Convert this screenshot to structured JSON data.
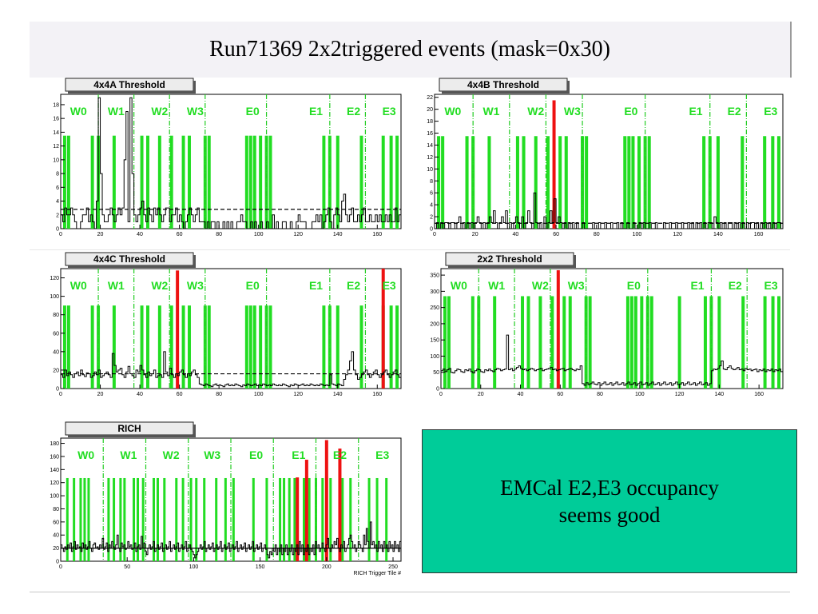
{
  "page": {
    "title": "Run71369 2x2triggered events (mask=0x30)"
  },
  "note": {
    "line1": "EMCal E2,E3 occupancy",
    "line2": "seems good"
  },
  "colors": {
    "good_strip": "#22dd22",
    "hot_strip": "#ee1111",
    "region_line": "#22cc22",
    "trace": "#000000",
    "tab_bg": "#ececec"
  },
  "chart_data": [
    {
      "id": "p4a",
      "type": "histogram",
      "title": "4x4A Threshold",
      "xlabel": "",
      "xlim": [
        0,
        172
      ],
      "ylim": [
        0,
        19.5
      ],
      "xticks": [
        0,
        20,
        40,
        60,
        80,
        100,
        120,
        140,
        160
      ],
      "yticks": [
        0,
        2,
        4,
        6,
        8,
        10,
        12,
        14,
        16,
        18
      ],
      "region_labels": [
        {
          "text": "W0",
          "x": 9
        },
        {
          "text": "W1",
          "x": 28
        },
        {
          "text": "W2",
          "x": 50
        },
        {
          "text": "W3",
          "x": 68
        },
        {
          "text": "E0",
          "x": 97
        },
        {
          "text": "E1",
          "x": 129
        },
        {
          "text": "E2",
          "x": 148
        },
        {
          "text": "E3",
          "x": 166
        }
      ],
      "dividers": [
        19,
        37,
        55,
        73,
        104,
        136,
        154
      ],
      "green_strips": [
        2,
        4,
        16,
        19,
        27,
        41,
        44,
        50,
        56,
        62,
        65,
        73,
        75,
        94,
        96,
        98,
        101,
        104,
        106,
        133,
        136,
        140,
        152,
        163,
        167,
        170
      ],
      "green_height": 13.5,
      "red_strips": [],
      "threshold": 2.8,
      "values": [
        2,
        1,
        3,
        2,
        2,
        3,
        2,
        1,
        0,
        0,
        1,
        2,
        2,
        3,
        1,
        2,
        1,
        0,
        4,
        19,
        8,
        2,
        1,
        1,
        2,
        3,
        2,
        1,
        2,
        3,
        2,
        3,
        10,
        17,
        1,
        19,
        8,
        2,
        1,
        2,
        3,
        4,
        2,
        1,
        3,
        2,
        1,
        3,
        2,
        3,
        2,
        1,
        2,
        3,
        3,
        1,
        2,
        2,
        3,
        1,
        2,
        1,
        0,
        1,
        2,
        3,
        2,
        1,
        2,
        3,
        1,
        1,
        1,
        0,
        1,
        0,
        1,
        1,
        0,
        1,
        0,
        0,
        1,
        0,
        1,
        0,
        1,
        0,
        0,
        1,
        1,
        2,
        1,
        1,
        0,
        0,
        1,
        0,
        1,
        0,
        0,
        1,
        0,
        0,
        1,
        0,
        0,
        2,
        0,
        1,
        0,
        0,
        1,
        1,
        0,
        0,
        1,
        0,
        0,
        1,
        2,
        1,
        1,
        1,
        0,
        0,
        0,
        1,
        1,
        2,
        1,
        2,
        0,
        1,
        2,
        3,
        1,
        0,
        2,
        3,
        2,
        1,
        4,
        5,
        2,
        1,
        2,
        3,
        1,
        1,
        2,
        1,
        2,
        3,
        1,
        1,
        2,
        1,
        1,
        2,
        1,
        2,
        1,
        1,
        2,
        1,
        2,
        1,
        1,
        3,
        1,
        2
      ]
    },
    {
      "id": "p4b",
      "type": "histogram",
      "title": "4x4B Threshold",
      "xlabel": "",
      "xlim": [
        0,
        172
      ],
      "ylim": [
        0,
        22.5
      ],
      "xticks": [
        0,
        20,
        40,
        60,
        80,
        100,
        120,
        140,
        160
      ],
      "yticks": [
        0,
        2,
        4,
        6,
        8,
        10,
        12,
        14,
        16,
        18,
        20,
        22
      ],
      "region_labels": [
        {
          "text": "W0",
          "x": 9
        },
        {
          "text": "W1",
          "x": 28
        },
        {
          "text": "W2",
          "x": 50
        },
        {
          "text": "W3",
          "x": 68
        },
        {
          "text": "E0",
          "x": 97
        },
        {
          "text": "E1",
          "x": 129
        },
        {
          "text": "E2",
          "x": 148
        },
        {
          "text": "E3",
          "x": 166
        }
      ],
      "dividers": [
        19,
        37,
        55,
        73,
        104,
        136,
        154
      ],
      "green_strips": [
        2,
        4,
        16,
        19,
        27,
        41,
        44,
        50,
        56,
        62,
        65,
        73,
        75,
        94,
        96,
        98,
        101,
        104,
        106,
        133,
        136,
        140,
        152,
        163,
        167,
        170
      ],
      "green_height": 15.5,
      "red_strips": [
        {
          "x": 59,
          "height": 21.5
        }
      ],
      "threshold": 0.9,
      "values": [
        0,
        1,
        0,
        1,
        0,
        1,
        1,
        0,
        1,
        1,
        0,
        1,
        2,
        0,
        1,
        0,
        1,
        0,
        1,
        0,
        1,
        2,
        1,
        0,
        1,
        0,
        1,
        2,
        1,
        3,
        1,
        0,
        1,
        2,
        1,
        3,
        0,
        1,
        0,
        1,
        2,
        1,
        0,
        2,
        0,
        1,
        3,
        1,
        0,
        6,
        1,
        0,
        1,
        0,
        2,
        0,
        1,
        3,
        1,
        5,
        1,
        2,
        1,
        0,
        1,
        0,
        1,
        0,
        1,
        0,
        1,
        0,
        0,
        1,
        0,
        0,
        0,
        0,
        1,
        0,
        0,
        1,
        0,
        0,
        1,
        0,
        0,
        1,
        0,
        0,
        1,
        0,
        1,
        0,
        0,
        1,
        0,
        0,
        1,
        0,
        0,
        1,
        0,
        1,
        0,
        0,
        1,
        0,
        0,
        1,
        0,
        0,
        0,
        1,
        0,
        0,
        1,
        0,
        0,
        1,
        0,
        0,
        1,
        0,
        0,
        1,
        0,
        1,
        0,
        1,
        0,
        1,
        0,
        1,
        0,
        1,
        1,
        0,
        2,
        1,
        0,
        1,
        0,
        1,
        0,
        1,
        1,
        0,
        1,
        0,
        1,
        0,
        1,
        0,
        1,
        0,
        1,
        1,
        0,
        1,
        0,
        1,
        0,
        1,
        0,
        1,
        0,
        1,
        0,
        1,
        1,
        0
      ]
    },
    {
      "id": "p4c",
      "type": "histogram",
      "title": "4x4C Threshold",
      "xlabel": "",
      "xlim": [
        0,
        172
      ],
      "ylim": [
        0,
        130
      ],
      "xticks": [
        0,
        20,
        40,
        60,
        80,
        100,
        120,
        140,
        160
      ],
      "yticks": [
        0,
        20,
        40,
        60,
        80,
        100,
        120
      ],
      "region_labels": [
        {
          "text": "W0",
          "x": 9
        },
        {
          "text": "W1",
          "x": 28
        },
        {
          "text": "W2",
          "x": 50
        },
        {
          "text": "W3",
          "x": 68
        },
        {
          "text": "E0",
          "x": 97
        },
        {
          "text": "E1",
          "x": 129
        },
        {
          "text": "E2",
          "x": 148
        },
        {
          "text": "E3",
          "x": 166
        }
      ],
      "dividers": [
        19,
        37,
        55,
        73,
        104,
        136,
        154
      ],
      "green_strips": [
        2,
        4,
        16,
        19,
        27,
        41,
        44,
        50,
        56,
        62,
        65,
        73,
        75,
        94,
        96,
        98,
        101,
        104,
        106,
        133,
        136,
        140,
        152,
        163,
        167,
        170
      ],
      "green_height": 90,
      "red_strips": [
        {
          "x": 59,
          "height": 128
        },
        {
          "x": 163,
          "height": 132
        }
      ],
      "threshold": 16,
      "values": [
        15,
        12,
        20,
        14,
        18,
        15,
        12,
        16,
        18,
        14,
        20,
        15,
        13,
        17,
        16,
        12,
        14,
        18,
        15,
        20,
        12,
        14,
        16,
        18,
        15,
        12,
        38,
        25,
        18,
        20,
        22,
        15,
        12,
        18,
        24,
        16,
        14,
        12,
        20,
        18,
        25,
        20,
        15,
        12,
        18,
        14,
        16,
        20,
        12,
        14,
        15,
        12,
        40,
        18,
        14,
        22,
        15,
        12,
        16,
        14,
        18,
        20,
        15,
        12,
        16,
        14,
        18,
        20,
        15,
        12,
        5,
        4,
        3,
        5,
        4,
        3,
        2,
        4,
        5,
        3,
        4,
        3,
        2,
        4,
        5,
        3,
        4,
        3,
        5,
        4,
        3,
        2,
        4,
        3,
        5,
        4,
        3,
        4,
        5,
        3,
        4,
        3,
        5,
        4,
        3,
        4,
        3,
        5,
        4,
        3,
        4,
        3,
        5,
        4,
        3,
        2,
        4,
        3,
        5,
        4,
        3,
        4,
        5,
        3,
        4,
        3,
        5,
        4,
        3,
        4,
        3,
        5,
        4,
        3,
        4,
        3,
        15,
        5,
        4,
        3,
        5,
        4,
        3,
        10,
        15,
        20,
        30,
        40,
        20,
        15,
        10,
        12,
        15,
        18,
        20,
        15,
        12,
        15,
        18,
        20,
        15,
        12,
        15,
        18,
        20,
        15,
        12,
        15,
        18,
        20,
        15,
        12
      ]
    },
    {
      "id": "p2x2",
      "type": "histogram",
      "title": "2x2 Threshold",
      "xlabel": "",
      "xlim": [
        0,
        172
      ],
      "ylim": [
        0,
        370
      ],
      "xticks": [
        0,
        20,
        40,
        60,
        80,
        100,
        120,
        140,
        160
      ],
      "yticks": [
        0,
        50,
        100,
        150,
        200,
        250,
        300,
        350
      ],
      "region_labels": [
        {
          "text": "W0",
          "x": 9
        },
        {
          "text": "W1",
          "x": 28
        },
        {
          "text": "W2",
          "x": 50
        },
        {
          "text": "W3",
          "x": 68
        },
        {
          "text": "E0",
          "x": 97
        },
        {
          "text": "E1",
          "x": 129
        },
        {
          "text": "E2",
          "x": 148
        },
        {
          "text": "E3",
          "x": 166
        }
      ],
      "dividers": [
        19,
        37,
        55,
        73,
        104,
        136,
        154
      ],
      "green_strips": [
        2,
        4,
        16,
        19,
        27,
        41,
        44,
        50,
        56,
        62,
        65,
        73,
        75,
        94,
        96,
        98,
        101,
        104,
        106,
        120,
        133,
        136,
        140,
        152,
        163,
        167,
        170
      ],
      "green_height": 285,
      "red_strips": [
        {
          "x": 59,
          "height": 365
        }
      ],
      "threshold": null,
      "values": [
        55,
        60,
        52,
        58,
        62,
        50,
        48,
        55,
        60,
        58,
        52,
        50,
        58,
        55,
        60,
        52,
        48,
        55,
        60,
        58,
        52,
        50,
        58,
        55,
        60,
        55,
        52,
        58,
        62,
        60,
        55,
        58,
        60,
        165,
        58,
        62,
        55,
        60,
        65,
        70,
        62,
        58,
        60,
        55,
        58,
        62,
        60,
        55,
        58,
        60,
        62,
        55,
        58,
        60,
        62,
        65,
        58,
        60,
        55,
        58,
        60,
        62,
        55,
        58,
        60,
        62,
        58,
        55,
        60,
        58,
        70,
        15,
        10,
        18,
        12,
        15,
        20,
        14,
        12,
        18,
        10,
        15,
        20,
        12,
        14,
        18,
        10,
        15,
        20,
        12,
        14,
        18,
        10,
        15,
        20,
        12,
        14,
        18,
        10,
        15,
        20,
        12,
        14,
        18,
        10,
        15,
        20,
        12,
        14,
        18,
        10,
        15,
        20,
        12,
        14,
        18,
        10,
        15,
        20,
        12,
        14,
        18,
        10,
        15,
        20,
        12,
        14,
        18,
        10,
        15,
        20,
        12,
        14,
        18,
        10,
        15,
        55,
        60,
        58,
        62,
        70,
        85,
        60,
        58,
        65,
        70,
        62,
        58,
        60,
        65,
        58,
        60,
        55,
        62,
        58,
        60,
        55,
        58,
        60,
        52,
        58,
        55,
        60,
        52,
        58,
        55,
        60,
        52,
        58,
        55,
        60,
        52
      ]
    },
    {
      "id": "prich",
      "type": "histogram",
      "title": "RICH",
      "xlabel": "RICH Trigger Tile #",
      "xlim": [
        0,
        256
      ],
      "ylim": [
        0,
        188
      ],
      "xticks": [
        0,
        50,
        100,
        150,
        200,
        250
      ],
      "yticks": [
        0,
        20,
        40,
        60,
        80,
        100,
        120,
        140,
        160,
        180
      ],
      "region_labels": [
        {
          "text": "W0",
          "x": 19
        },
        {
          "text": "W1",
          "x": 51
        },
        {
          "text": "W2",
          "x": 83
        },
        {
          "text": "W3",
          "x": 114
        },
        {
          "text": "E0",
          "x": 147
        },
        {
          "text": "E1",
          "x": 179
        },
        {
          "text": "E2",
          "x": 210
        },
        {
          "text": "E3",
          "x": 242
        }
      ],
      "dividers": [
        32,
        64,
        96,
        128,
        160,
        192,
        224
      ],
      "green_strips": [
        5,
        10,
        15,
        18,
        21,
        36,
        40,
        45,
        48,
        55,
        58,
        62,
        70,
        73,
        78,
        87,
        92,
        98,
        102,
        108,
        117,
        124,
        130,
        145,
        155,
        165,
        168,
        172,
        176,
        183,
        187,
        192,
        197,
        203,
        212,
        218,
        232,
        238,
        245
      ],
      "green_height": 127,
      "red_strips": [
        {
          "x": 178,
          "height": 128
        },
        {
          "x": 185,
          "height": 155
        },
        {
          "x": 200,
          "height": 185
        },
        {
          "x": 210,
          "height": 172
        }
      ],
      "threshold": 20,
      "values": [
        25,
        20,
        15,
        22,
        18,
        25,
        20,
        28,
        15,
        22,
        30,
        18,
        25,
        20,
        22,
        15,
        28,
        20,
        25,
        18,
        22,
        30,
        20,
        15,
        25,
        28,
        20,
        22,
        18,
        25,
        20,
        35,
        18,
        22,
        28,
        15,
        25,
        20,
        30,
        22,
        18,
        25,
        40,
        20,
        15,
        28,
        22,
        25,
        18,
        20,
        30,
        22,
        25,
        18,
        20,
        28,
        15,
        22,
        25,
        18,
        38,
        20,
        28,
        15,
        10,
        20,
        25,
        18,
        22,
        30,
        15,
        20,
        25,
        18,
        22,
        28,
        15,
        20,
        25,
        18,
        22,
        30,
        15,
        20,
        25,
        18,
        22,
        28,
        15,
        20,
        25,
        18,
        22,
        30,
        15,
        20,
        25,
        18,
        15,
        10,
        5,
        10,
        15,
        20,
        25,
        18,
        22,
        30,
        15,
        20,
        25,
        18,
        22,
        28,
        15,
        20,
        25,
        18,
        22,
        30,
        15,
        20,
        25,
        18,
        22,
        28,
        15,
        20,
        25,
        18,
        22,
        30,
        15,
        20,
        25,
        18,
        22,
        28,
        15,
        20,
        25,
        18,
        22,
        30,
        15,
        20,
        25,
        18,
        22,
        28,
        15,
        20,
        25,
        18,
        10,
        5,
        15,
        10,
        20,
        15,
        25,
        10,
        20,
        15,
        25,
        10,
        20,
        15,
        25,
        10,
        20,
        15,
        25,
        10,
        20,
        15,
        25,
        10,
        30,
        15,
        25,
        10,
        20,
        15,
        25,
        10,
        20,
        15,
        25,
        10,
        30,
        20,
        25,
        15,
        20,
        28,
        20,
        15,
        25,
        35,
        20,
        15,
        25,
        20,
        30,
        25,
        35,
        20,
        15,
        25,
        20,
        30,
        15,
        20,
        25,
        35,
        40,
        30,
        20,
        25,
        15,
        20,
        30,
        25,
        20,
        15,
        40,
        25,
        50,
        30,
        20,
        60,
        25,
        30,
        20,
        25,
        15,
        30,
        20,
        25,
        15,
        30,
        20,
        25,
        15,
        30,
        20,
        25,
        15,
        30,
        20,
        25,
        15,
        30
      ]
    }
  ]
}
